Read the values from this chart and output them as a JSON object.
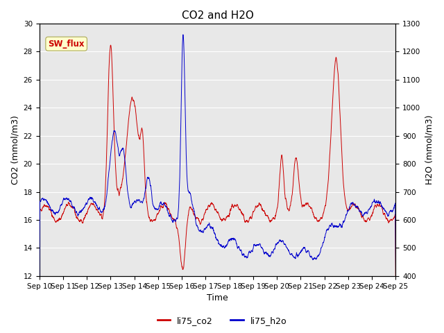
{
  "title": "CO2 and H2O",
  "xlabel": "Time",
  "ylabel_left": "CO2 (mmol/m3)",
  "ylabel_right": "H2O (mmol/m3)",
  "ylim_left": [
    12,
    30
  ],
  "ylim_right": [
    400,
    1300
  ],
  "yticks_left": [
    12,
    14,
    16,
    18,
    20,
    22,
    24,
    26,
    28,
    30
  ],
  "yticks_right": [
    400,
    500,
    600,
    700,
    800,
    900,
    1000,
    1100,
    1200,
    1300
  ],
  "xtick_labels": [
    "Sep 10",
    "Sep 11",
    "Sep 12",
    "Sep 13",
    "Sep 14",
    "Sep 15",
    "Sep 16",
    "Sep 17",
    "Sep 18",
    "Sep 19",
    "Sep 20",
    "Sep 21",
    "Sep 22",
    "Sep 23",
    "Sep 24",
    "Sep 25"
  ],
  "color_co2": "#cc0000",
  "color_h2o": "#0000cc",
  "legend_labels": [
    "li75_co2",
    "li75_h2o"
  ],
  "annotation_text": "SW_flux",
  "annotation_color": "#cc0000",
  "annotation_bg": "#ffffcc",
  "bg_color": "#e8e8e8",
  "title_fontsize": 11,
  "axis_fontsize": 9,
  "tick_fontsize": 7.5
}
